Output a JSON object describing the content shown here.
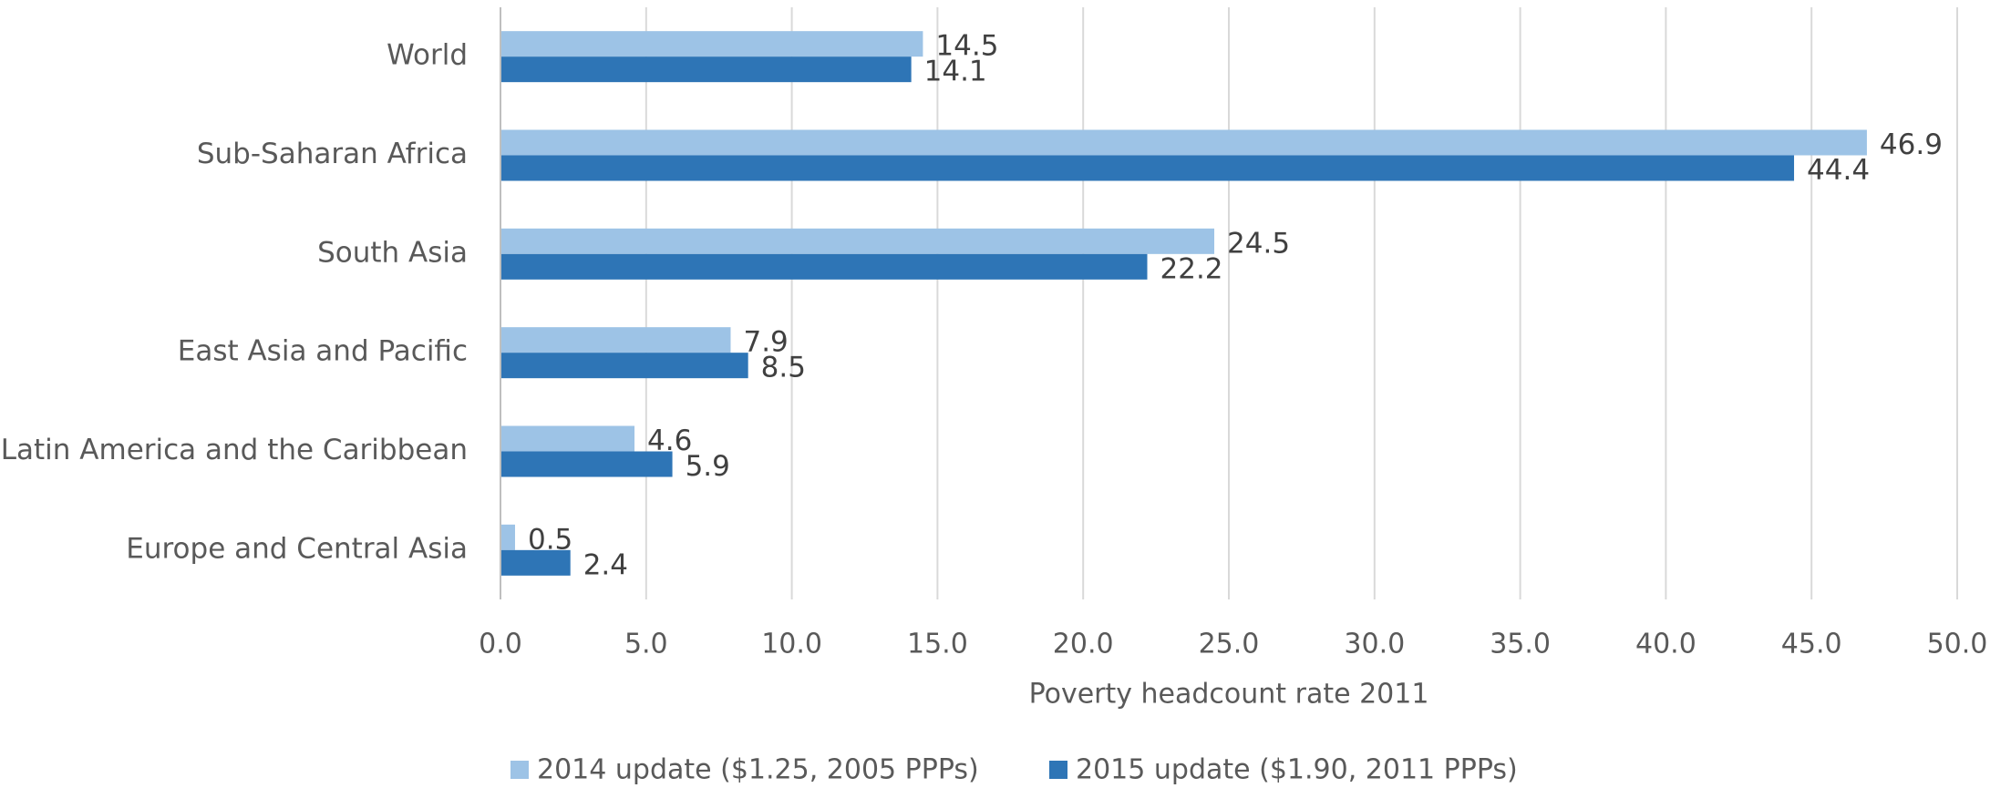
{
  "chart_data": {
    "type": "bar",
    "orientation": "horizontal",
    "x_label": "Poverty headcount rate 2011",
    "categories": [
      "World",
      "Sub-Saharan Africa",
      "South Asia",
      "East Asia and Pacific",
      "Latin America and the Caribbean",
      "Europe and Central Asia"
    ],
    "series": [
      {
        "name": "2014 update ($1.25, 2005 PPPs)",
        "color": "#9dc3e6",
        "values": [
          14.5,
          46.9,
          24.5,
          7.9,
          4.6,
          0.5
        ]
      },
      {
        "name": "2015 update ($1.90, 2011 PPPs)",
        "color": "#2e75b6",
        "values": [
          14.1,
          44.4,
          22.2,
          8.5,
          5.9,
          2.4
        ]
      }
    ],
    "xlim": [
      0,
      50
    ],
    "xticks": [
      {
        "value": 0,
        "label": "0.0"
      },
      {
        "value": 5,
        "label": "5.0"
      },
      {
        "value": 10,
        "label": "10.0"
      },
      {
        "value": 15,
        "label": "15.0"
      },
      {
        "value": 20,
        "label": "20.0"
      },
      {
        "value": 25,
        "label": "25.0"
      },
      {
        "value": 30,
        "label": "30.0"
      },
      {
        "value": 35,
        "label": "35.0"
      },
      {
        "value": 40,
        "label": "40.0"
      },
      {
        "value": 45,
        "label": "45.0"
      },
      {
        "value": 50,
        "label": "50.0"
      }
    ],
    "grid": true,
    "legend": "bottom"
  }
}
